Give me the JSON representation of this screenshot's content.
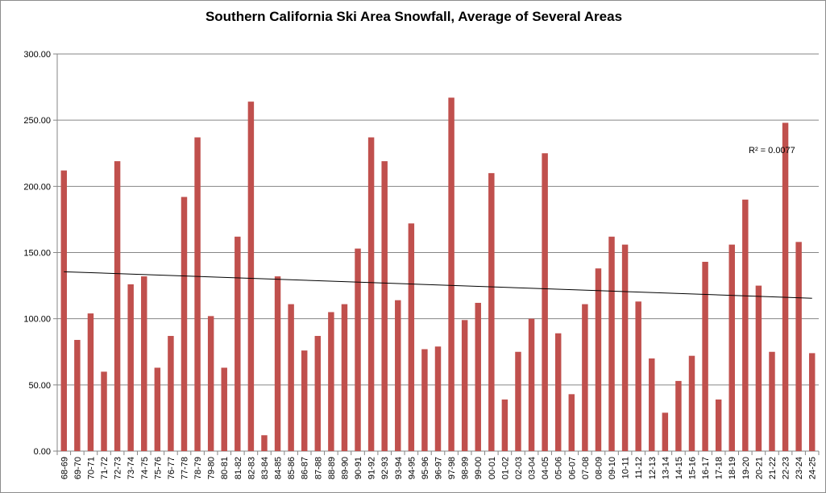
{
  "chart_data": {
    "type": "bar",
    "title": "Southern California Ski Area Snowfall, Average of Several Areas",
    "xlabel": "",
    "ylabel": "",
    "ylim": [
      0,
      300
    ],
    "yticks": [
      "0.00",
      "50.00",
      "100.00",
      "150.00",
      "200.00",
      "250.00",
      "300.00"
    ],
    "grid": "horizontal",
    "legend": "none",
    "bar_color": "#C0504D",
    "categories": [
      "68-69",
      "69-70",
      "70-71",
      "71-72",
      "72-73",
      "73-74",
      "74-75",
      "75-76",
      "76-77",
      "77-78",
      "78-79",
      "79-80",
      "80-81",
      "81-82",
      "82-83",
      "83-84",
      "84-85",
      "85-86",
      "86-87",
      "87-88",
      "88-89",
      "89-90",
      "90-91",
      "91-92",
      "92-93",
      "93-94",
      "94-95",
      "95-96",
      "96-97",
      "97-98",
      "98-99",
      "99-00",
      "00-01",
      "01-02",
      "02-03",
      "03-04",
      "04-05",
      "05-06",
      "06-07",
      "07-08",
      "08-09",
      "09-10",
      "10-11",
      "11-12",
      "12-13",
      "13-14",
      "14-15",
      "15-16",
      "16-17",
      "17-18",
      "18-19",
      "19-20",
      "20-21",
      "21-22",
      "22-23",
      "23-24",
      "24-25"
    ],
    "values": [
      212,
      84,
      104,
      60,
      219,
      126,
      132,
      63,
      87,
      192,
      237,
      102,
      63,
      162,
      264,
      12,
      132,
      111,
      76,
      87,
      105,
      111,
      153,
      237,
      219,
      114,
      172,
      77,
      79,
      267,
      99,
      112,
      210,
      39,
      75,
      100,
      225,
      89,
      43,
      111,
      138,
      162,
      156,
      113,
      70,
      29,
      53,
      72,
      143,
      39,
      156,
      190,
      125,
      75,
      248,
      158,
      74
    ],
    "trendline": {
      "type": "linear",
      "start_value": 135.5,
      "end_value": 115.5,
      "r_squared_label": "R² = 0.0077"
    }
  }
}
